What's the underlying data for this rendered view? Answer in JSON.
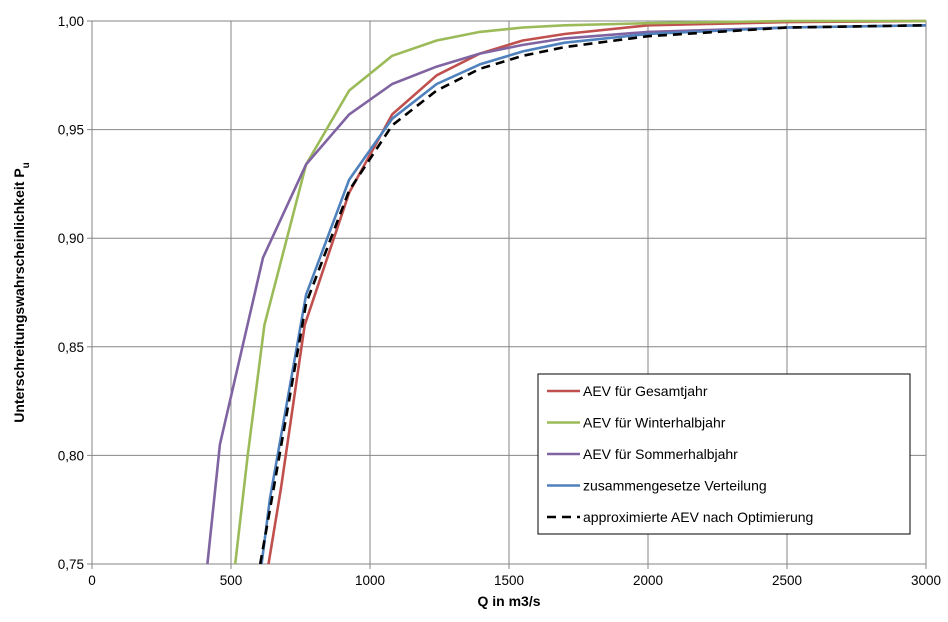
{
  "chart_data": {
    "type": "line",
    "title": "",
    "xlabel": "Q in m3/s",
    "ylabel_main": "Unterschreitungswahrscheinlichkeit P",
    "ylabel_sub": "u",
    "xlim": [
      0,
      3000
    ],
    "ylim": [
      0.75,
      1.0
    ],
    "x_ticks": [
      0,
      500,
      1000,
      1500,
      2000,
      2500,
      3000
    ],
    "x_tick_labels": [
      "0",
      "500",
      "1000",
      "1500",
      "2000",
      "2500",
      "3000"
    ],
    "y_ticks": [
      0.75,
      0.8,
      0.85,
      0.9,
      0.95,
      1.0
    ],
    "y_tick_labels": [
      "0,75",
      "0,80",
      "0,85",
      "0,90",
      "0,95",
      "1,00"
    ],
    "grid": true,
    "legend_position": "bottom-right",
    "series": [
      {
        "name": "AEV für Gesamtjahr",
        "color": "#c0504d",
        "dash": "solid",
        "points": [
          [
            635,
            0.75
          ],
          [
            680,
            0.785
          ],
          [
            765,
            0.86
          ],
          [
            925,
            0.921
          ],
          [
            1080,
            0.957
          ],
          [
            1240,
            0.975
          ],
          [
            1395,
            0.985
          ],
          [
            1550,
            0.991
          ],
          [
            1700,
            0.994
          ],
          [
            2000,
            0.998
          ],
          [
            2500,
            0.9995
          ],
          [
            3000,
            1.0
          ]
        ]
      },
      {
        "name": "AEV für Winterhalbjahr",
        "color": "#9bbb59",
        "dash": "solid",
        "points": [
          [
            515,
            0.75
          ],
          [
            560,
            0.8
          ],
          [
            620,
            0.86
          ],
          [
            770,
            0.934
          ],
          [
            925,
            0.968
          ],
          [
            1080,
            0.984
          ],
          [
            1240,
            0.991
          ],
          [
            1395,
            0.995
          ],
          [
            1550,
            0.997
          ],
          [
            1700,
            0.998
          ],
          [
            2000,
            0.999
          ],
          [
            2500,
            1.0
          ],
          [
            3000,
            1.0
          ]
        ]
      },
      {
        "name": "AEV für Sommerhalbjahr",
        "color": "#8064a2",
        "dash": "solid",
        "points": [
          [
            415,
            0.75
          ],
          [
            460,
            0.805
          ],
          [
            615,
            0.891
          ],
          [
            770,
            0.934
          ],
          [
            925,
            0.957
          ],
          [
            1080,
            0.971
          ],
          [
            1240,
            0.979
          ],
          [
            1395,
            0.985
          ],
          [
            1550,
            0.989
          ],
          [
            1700,
            0.992
          ],
          [
            2000,
            0.995
          ],
          [
            2500,
            0.997
          ],
          [
            3000,
            0.998
          ]
        ]
      },
      {
        "name": "zusammengesetze Verteilung",
        "color": "#4f81bd",
        "dash": "solid",
        "points": [
          [
            610,
            0.75
          ],
          [
            640,
            0.78
          ],
          [
            770,
            0.874
          ],
          [
            925,
            0.927
          ],
          [
            1080,
            0.955
          ],
          [
            1240,
            0.971
          ],
          [
            1395,
            0.98
          ],
          [
            1550,
            0.986
          ],
          [
            1700,
            0.99
          ],
          [
            2000,
            0.994
          ],
          [
            2500,
            0.997
          ],
          [
            3000,
            0.998
          ]
        ]
      },
      {
        "name": "approximierte AEV nach Optimierung",
        "color": "#000000",
        "dash": "dashed",
        "points": [
          [
            605,
            0.75
          ],
          [
            640,
            0.775
          ],
          [
            770,
            0.87
          ],
          [
            925,
            0.922
          ],
          [
            1080,
            0.952
          ],
          [
            1240,
            0.968
          ],
          [
            1395,
            0.978
          ],
          [
            1550,
            0.984
          ],
          [
            1700,
            0.988
          ],
          [
            2000,
            0.993
          ],
          [
            2500,
            0.997
          ],
          [
            3000,
            0.998
          ]
        ]
      }
    ]
  }
}
